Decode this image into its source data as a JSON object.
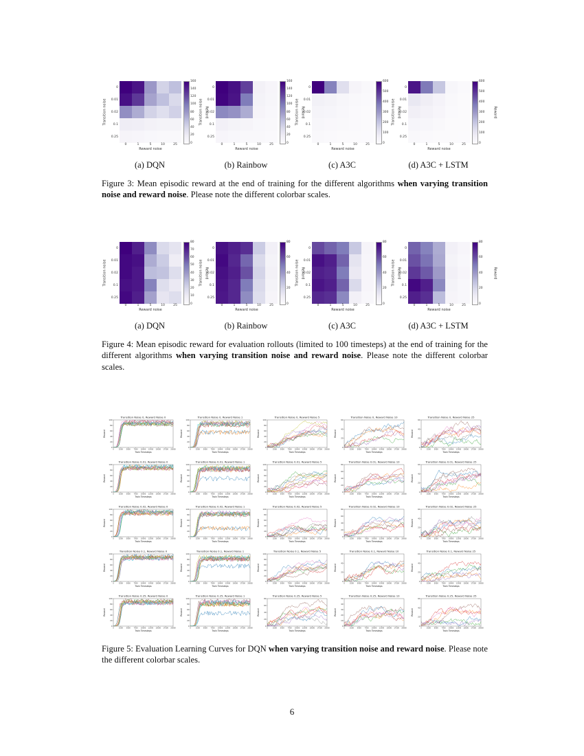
{
  "page": {
    "number": "6"
  },
  "colors": {
    "purples": [
      "#fcfbfd",
      "#efedf5",
      "#dadaeb",
      "#bcbddc",
      "#9e9ac8",
      "#807dba",
      "#6a51a3",
      "#54278f",
      "#3f007d"
    ],
    "line_cycle": [
      "#1f77b4",
      "#ff7f0e",
      "#2ca02c",
      "#d62728",
      "#9467bd",
      "#8c564b",
      "#e377c2",
      "#7f7f7f",
      "#bcbd22",
      "#17becf"
    ]
  },
  "figure3": {
    "caption": {
      "prefix": "Figure 3: Mean episodic reward at the end of training for the different algorithms ",
      "bold": "when varying transition noise and reward noise",
      "suffix": ". Please note the different colorbar scales."
    },
    "xlabel": "Reward noise",
    "ylabel": "Transition noise",
    "colorbar_label": "Reward",
    "x_ticks": [
      "0",
      "1",
      "5",
      "10",
      "25"
    ],
    "y_ticks": [
      "0",
      "0.01",
      "0.02",
      "0.1",
      "0.25"
    ],
    "panels": [
      {
        "id": "dqn",
        "label": "(a) DQN",
        "vmax": 160,
        "cbar_ticks": [
          160,
          140,
          120,
          100,
          80,
          60,
          40,
          20,
          0
        ],
        "values": [
          [
            160,
            150,
            82,
            45,
            58
          ],
          [
            152,
            132,
            75,
            58,
            40
          ],
          [
            88,
            70,
            45,
            35,
            46
          ],
          [
            20,
            18,
            14,
            12,
            12
          ],
          [
            10,
            8,
            6,
            5,
            5
          ]
        ]
      },
      {
        "id": "rainbow",
        "label": "(b) Rainbow",
        "vmax": 160,
        "cbar_ticks": [
          160,
          140,
          120,
          100,
          80,
          60,
          40,
          20,
          0
        ],
        "values": [
          [
            160,
            152,
            128,
            14,
            8
          ],
          [
            158,
            150,
            100,
            12,
            7
          ],
          [
            92,
            86,
            70,
            10,
            6
          ],
          [
            16,
            12,
            10,
            6,
            5
          ],
          [
            8,
            6,
            5,
            4,
            3
          ]
        ]
      },
      {
        "id": "a3c",
        "label": "(c) A3C",
        "vmax": 600,
        "cbar_ticks": [
          600,
          500,
          400,
          300,
          200,
          100,
          0
        ],
        "values": [
          [
            600,
            360,
            130,
            35,
            15
          ],
          [
            55,
            45,
            28,
            16,
            10
          ],
          [
            38,
            32,
            22,
            13,
            8
          ],
          [
            26,
            20,
            15,
            10,
            6
          ],
          [
            15,
            12,
            8,
            5,
            4
          ]
        ]
      },
      {
        "id": "a3c-lstm",
        "label": "(d) A3C + LSTM",
        "vmax": 600,
        "cbar_ticks": [
          600,
          500,
          400,
          300,
          200,
          100,
          0
        ],
        "values": [
          [
            560,
            380,
            200,
            28,
            12
          ],
          [
            95,
            72,
            42,
            16,
            8
          ],
          [
            62,
            48,
            30,
            11,
            6
          ],
          [
            32,
            26,
            16,
            8,
            5
          ],
          [
            16,
            11,
            8,
            5,
            4
          ]
        ]
      }
    ]
  },
  "figure4": {
    "caption": {
      "prefix": "Figure 4: Mean episodic reward for evaluation rollouts (limited to 100 timesteps) at the end of training for the different algorithms ",
      "bold": "when varying transition noise and reward noise",
      "suffix": ". Please note the different colorbar scales."
    },
    "xlabel": "Reward noise",
    "ylabel": "Transition noise",
    "colorbar_label": "Reward",
    "x_ticks": [
      "0",
      "1",
      "5",
      "10",
      "25"
    ],
    "y_ticks": [
      "0",
      "0.01",
      "0.02",
      "0.1",
      "0.25"
    ],
    "panels": [
      {
        "id": "dqn",
        "label": "(a) DQN",
        "vmax": 80,
        "cbar_ticks": [
          80,
          70,
          60,
          50,
          40,
          30,
          20,
          10,
          0
        ],
        "values": [
          [
            80,
            72,
            45,
            20,
            15
          ],
          [
            78,
            76,
            35,
            25,
            10
          ],
          [
            78,
            74,
            30,
            28,
            18
          ],
          [
            76,
            74,
            48,
            18,
            12
          ],
          [
            78,
            72,
            38,
            14,
            18
          ]
        ]
      },
      {
        "id": "rainbow",
        "label": "(b) Rainbow",
        "vmax": 80,
        "cbar_ticks": [
          80,
          60,
          40,
          20,
          0
        ],
        "values": [
          [
            76,
            72,
            68,
            25,
            8
          ],
          [
            78,
            70,
            55,
            20,
            6
          ],
          [
            76,
            72,
            60,
            22,
            7
          ],
          [
            75,
            70,
            50,
            20,
            6
          ],
          [
            74,
            70,
            45,
            18,
            5
          ]
        ]
      },
      {
        "id": "a3c",
        "label": "(c) A3C",
        "vmax": 80,
        "cbar_ticks": [
          80,
          60,
          40,
          20,
          0
        ],
        "values": [
          [
            62,
            56,
            50,
            26,
            5
          ],
          [
            76,
            72,
            56,
            15,
            4
          ],
          [
            72,
            70,
            50,
            12,
            4
          ],
          [
            75,
            72,
            56,
            20,
            4
          ],
          [
            70,
            68,
            46,
            8,
            3
          ]
        ]
      },
      {
        "id": "a3c-lstm",
        "label": "(d) A3C + LSTM",
        "vmax": 80,
        "cbar_ticks": [
          80,
          60,
          40,
          20,
          0
        ],
        "values": [
          [
            56,
            48,
            35,
            8,
            4
          ],
          [
            60,
            52,
            36,
            6,
            3
          ],
          [
            66,
            58,
            40,
            8,
            4
          ],
          [
            78,
            72,
            46,
            6,
            3
          ],
          [
            72,
            68,
            30,
            5,
            3
          ]
        ]
      }
    ]
  },
  "figure5": {
    "caption": {
      "prefix": "Figure 5: Evaluation Learning Curves for DQN ",
      "bold": "when varying transition noise and reward noise",
      "suffix": ". Please note the different colorbar scales."
    },
    "axis": {
      "xlabel": "Train Timesteps",
      "ylabel": "Reward",
      "x_ticks": [
        "0",
        "2500",
        "5000",
        "7500",
        "10000",
        "12500",
        "15000",
        "17500",
        "20000"
      ],
      "x_max": 20000
    },
    "plots": [
      {
        "title": "Transition Noise 0, Reward Noise 0",
        "kind": "plateau",
        "lines": 10,
        "ylim": 100,
        "yticks": [
          0,
          20,
          40,
          60,
          80,
          100
        ],
        "base": 88,
        "spread": 14,
        "noise": 7,
        "rise": 2000,
        "low": 0,
        "low_count": 0
      },
      {
        "title": "Transition Noise 0, Reward Noise 1",
        "kind": "mixed",
        "lines": 10,
        "ylim": 100,
        "yticks": [
          0,
          20,
          40,
          60,
          80,
          100
        ],
        "base": 85,
        "spread": 14,
        "noise": 8,
        "rise": 2200,
        "low": 50,
        "low_count": 2
      },
      {
        "title": "Transition Noise 0, Reward Noise 5",
        "kind": "chaotic",
        "lines": 9,
        "ylim": 100,
        "yticks": [
          0,
          20,
          40,
          60,
          80,
          100
        ],
        "base": 60,
        "spread": 50,
        "noise": 12,
        "rise": 8000,
        "low": 0,
        "low_count": 0
      },
      {
        "title": "Transition Noise 0, Reward Noise 10",
        "kind": "chaotic",
        "lines": 6,
        "ylim": 60,
        "yticks": [
          0,
          20,
          40,
          60
        ],
        "base": 30,
        "spread": 30,
        "noise": 9,
        "rise": 6000,
        "low": 0,
        "low_count": 0
      },
      {
        "title": "Transition Noise 0, Reward Noise 25",
        "kind": "chaotic",
        "lines": 8,
        "ylim": 60,
        "yticks": [
          0,
          20,
          40,
          60
        ],
        "base": 30,
        "spread": 35,
        "noise": 10,
        "rise": 5000,
        "low": 0,
        "low_count": 0
      },
      {
        "title": "Transition Noise 0.01, Reward Noise 0",
        "kind": "plateau",
        "lines": 10,
        "ylim": 100,
        "yticks": [
          0,
          20,
          40,
          60,
          80,
          100
        ],
        "base": 88,
        "spread": 12,
        "noise": 7,
        "rise": 2000,
        "low": 0,
        "low_count": 0
      },
      {
        "title": "Transition Noise 0.01, Reward Noise 1",
        "kind": "mixed",
        "lines": 10,
        "ylim": 100,
        "yticks": [
          0,
          20,
          40,
          60,
          80,
          100
        ],
        "base": 85,
        "spread": 13,
        "noise": 9,
        "rise": 2200,
        "low": 45,
        "low_count": 1
      },
      {
        "title": "Transition Noise 0.01, Reward Noise 5",
        "kind": "chaotic",
        "lines": 9,
        "ylim": 100,
        "yticks": [
          0,
          20,
          40,
          60,
          80,
          100
        ],
        "base": 45,
        "spread": 45,
        "noise": 12,
        "rise": 8000,
        "low": 0,
        "low_count": 0
      },
      {
        "title": "Transition Noise 0.01, Reward Noise 10",
        "kind": "chaotic",
        "lines": 7,
        "ylim": 80,
        "yticks": [
          0,
          20,
          40,
          60,
          80
        ],
        "base": 40,
        "spread": 30,
        "noise": 10,
        "rise": 6000,
        "low": 0,
        "low_count": 0
      },
      {
        "title": "Transition Noise 0.01, Reward Noise 25",
        "kind": "chaotic",
        "lines": 8,
        "ylim": 60,
        "yticks": [
          0,
          20,
          40,
          60
        ],
        "base": 30,
        "spread": 30,
        "noise": 10,
        "rise": 5000,
        "low": 0,
        "low_count": 0
      },
      {
        "title": "Transition Noise 0.02, Reward Noise 0",
        "kind": "plateau",
        "lines": 10,
        "ylim": 100,
        "yticks": [
          0,
          20,
          40,
          60,
          80,
          100
        ],
        "base": 88,
        "spread": 12,
        "noise": 7,
        "rise": 2000,
        "low": 0,
        "low_count": 0
      },
      {
        "title": "Transition Noise 0.02, Reward Noise 1",
        "kind": "mixed",
        "lines": 10,
        "ylim": 100,
        "yticks": [
          0,
          20,
          40,
          60,
          80,
          100
        ],
        "base": 85,
        "spread": 13,
        "noise": 8,
        "rise": 2200,
        "low": 30,
        "low_count": 2
      },
      {
        "title": "Transition Noise 0.02, Reward Noise 5",
        "kind": "chaotic",
        "lines": 8,
        "ylim": 100,
        "yticks": [
          0,
          20,
          40,
          60,
          80,
          100
        ],
        "base": 45,
        "spread": 45,
        "noise": 12,
        "rise": 7000,
        "low": 0,
        "low_count": 0
      },
      {
        "title": "Transition Noise 0.02, Reward Noise 10",
        "kind": "chaotic",
        "lines": 7,
        "ylim": 80,
        "yticks": [
          0,
          20,
          40,
          60,
          80
        ],
        "base": 35,
        "spread": 30,
        "noise": 10,
        "rise": 6000,
        "low": 0,
        "low_count": 0
      },
      {
        "title": "Transition Noise 0.02, Reward Noise 25",
        "kind": "chaotic",
        "lines": 8,
        "ylim": 60,
        "yticks": [
          0,
          20,
          40,
          60
        ],
        "base": 30,
        "spread": 30,
        "noise": 10,
        "rise": 5000,
        "low": 0,
        "low_count": 0
      },
      {
        "title": "Transition Noise 0.1, Reward Noise 0",
        "kind": "plateau",
        "lines": 10,
        "ylim": 100,
        "yticks": [
          0,
          20,
          40,
          60,
          80,
          100
        ],
        "base": 88,
        "spread": 12,
        "noise": 7,
        "rise": 2100,
        "low": 0,
        "low_count": 0
      },
      {
        "title": "Transition Noise 0.1, Reward Noise 1",
        "kind": "mixed",
        "lines": 10,
        "ylim": 100,
        "yticks": [
          0,
          20,
          40,
          60,
          80,
          100
        ],
        "base": 85,
        "spread": 12,
        "noise": 8,
        "rise": 2300,
        "low": 55,
        "low_count": 1
      },
      {
        "title": "Transition Noise 0.1, Reward Noise 5",
        "kind": "chaotic",
        "lines": 8,
        "ylim": 100,
        "yticks": [
          0,
          20,
          40,
          60,
          80,
          100
        ],
        "base": 50,
        "spread": 45,
        "noise": 12,
        "rise": 6000,
        "low": 0,
        "low_count": 0
      },
      {
        "title": "Transition Noise 0.1, Reward Noise 10",
        "kind": "chaotic",
        "lines": 6,
        "ylim": 60,
        "yticks": [
          0,
          20,
          40,
          60
        ],
        "base": 30,
        "spread": 28,
        "noise": 9,
        "rise": 6000,
        "low": 0,
        "low_count": 0
      },
      {
        "title": "Transition Noise 0.1, Reward Noise 25",
        "kind": "chaotic",
        "lines": 6,
        "ylim": 60,
        "yticks": [
          0,
          20,
          40,
          60
        ],
        "base": 25,
        "spread": 30,
        "noise": 9,
        "rise": 7000,
        "low": 0,
        "low_count": 0
      },
      {
        "title": "Transition Noise 0.25, Reward Noise 0",
        "kind": "plateau",
        "lines": 10,
        "ylim": 100,
        "yticks": [
          0,
          20,
          40,
          60,
          80,
          100
        ],
        "base": 88,
        "spread": 12,
        "noise": 7,
        "rise": 2100,
        "low": 0,
        "low_count": 0
      },
      {
        "title": "Transition Noise 0.25, Reward Noise 1",
        "kind": "mixed",
        "lines": 10,
        "ylim": 100,
        "yticks": [
          0,
          20,
          40,
          60,
          80,
          100
        ],
        "base": 85,
        "spread": 12,
        "noise": 9,
        "rise": 2300,
        "low": 50,
        "low_count": 1
      },
      {
        "title": "Transition Noise 0.25, Reward Noise 5",
        "kind": "chaotic",
        "lines": 8,
        "ylim": 80,
        "yticks": [
          0,
          20,
          40,
          60,
          80
        ],
        "base": 45,
        "spread": 40,
        "noise": 11,
        "rise": 5000,
        "low": 0,
        "low_count": 0
      },
      {
        "title": "Transition Noise 0.25, Reward Noise 10",
        "kind": "chaotic",
        "lines": 7,
        "ylim": 50,
        "yticks": [
          0,
          10,
          20,
          30,
          40,
          50
        ],
        "base": 25,
        "spread": 25,
        "noise": 8,
        "rise": 5000,
        "low": 0,
        "low_count": 0
      },
      {
        "title": "Transition Noise 0.25, Reward Noise 25",
        "kind": "chaotic",
        "lines": 7,
        "ylim": 60,
        "yticks": [
          0,
          20,
          40,
          60
        ],
        "base": 25,
        "spread": 30,
        "noise": 9,
        "rise": 6000,
        "low": 0,
        "low_count": 0
      }
    ]
  }
}
